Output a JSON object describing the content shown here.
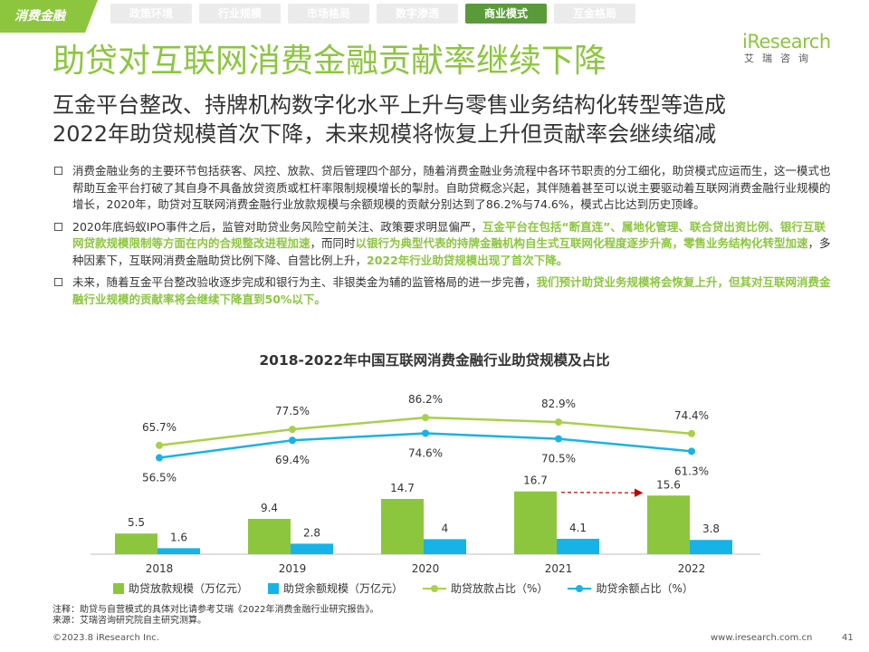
{
  "badge": {
    "label": "消费金融"
  },
  "tabs": [
    {
      "label": "政策环境",
      "active": false
    },
    {
      "label": "行业规模",
      "active": false
    },
    {
      "label": "市场格局",
      "active": false
    },
    {
      "label": "数字渗透",
      "active": false
    },
    {
      "label": "商业模式",
      "active": true
    },
    {
      "label": "互金格局",
      "active": false
    }
  ],
  "logo": {
    "mark": "iResearch",
    "sub": "艾瑞咨询"
  },
  "title": "助贷对互联网消费金融贡献率继续下降",
  "subtitle": {
    "line1": "互金平台整改、持牌机构数字化水平上升与零售业务结构化转型等造成",
    "line2": "2022年助贷规模首次下降，未来规模将恢复上升但贡献率会继续缩减"
  },
  "bullets": {
    "b1": "消费金融业务的主要环节包括获客、风控、放款、贷后管理四个部分，随着消费金融业务流程中各环节职责的分工细化，助贷模式应运而生，这一模式也帮助互金平台打破了其自身不具备放贷资质或杠杆率限制规模增长的掣肘。自助贷概念兴起，其伴随着甚至可以说主要驱动着互联网消费金融行业规模的增长，2020年，助贷对互联网消费金融行业放款规模与余额规模的贡献分别达到了86.2%与74.6%，模式占比达到历史顶峰。",
    "b2_p1": "2020年底蚂蚁IPO事件之后，监管对助贷业务风险空前关注、政策要求明显偏严，",
    "b2_h1": "互金平台在包括“断直连”、属地化管理、联合贷出资比例、银行互联网贷款规模限制等方面在内的合规整改进程加速",
    "b2_p2": "，而同时",
    "b2_h2": "以银行为典型代表的持牌金融机构自生式互联网化程度逐步升高，零售业务结构化转型加速",
    "b2_p3": "，多种因素下，互联网消费金融助贷比例下降、自营比例上升，",
    "b2_h3": "2022年行业助贷规模出现了首次下降。",
    "b3_p1": "未来，随着互金平台整改验收逐步完成和银行为主、非银类金为辅的监管格局的进一步完善，",
    "b3_h1": "我们预计助贷业务规模将会恢复上升，但其对互联网消费金融行业规模的贡献率将会继续下降直到50%以下。"
  },
  "chart_data": {
    "type": "bar+line",
    "title": "2018-2022年中国互联网消费金融行业助贷规模及占比",
    "categories": [
      "2018",
      "2019",
      "2020",
      "2021",
      "2022"
    ],
    "bar_series": [
      {
        "name": "助贷放款规模（万亿元）",
        "values": [
          5.5,
          9.4,
          14.7,
          16.7,
          15.6
        ],
        "color": "#8cc63f"
      },
      {
        "name": "助贷余额规模（万亿元）",
        "values": [
          1.6,
          2.8,
          4.0,
          4.1,
          3.8
        ],
        "color": "#17b3e6"
      }
    ],
    "line_series": [
      {
        "name": "助贷放款占比（%）",
        "values": [
          65.7,
          77.5,
          86.2,
          82.9,
          74.4
        ],
        "labels": [
          "65.7%",
          "77.5%",
          "86.2%",
          "82.9%",
          "74.4%"
        ],
        "color": "#a9d04a"
      },
      {
        "name": "助贷余额占比（%）",
        "values": [
          56.5,
          69.4,
          74.6,
          70.5,
          61.3
        ],
        "labels": [
          "56.5%",
          "69.4%",
          "74.6%",
          "70.5%",
          "61.3%"
        ],
        "color": "#17b3e6"
      }
    ],
    "bar_ylim": [
      0,
      20
    ],
    "line_ylim": [
      0,
      100
    ],
    "annotation": {
      "type": "dashed-arrow",
      "from": "2021",
      "to": "2022",
      "color": "#c00000"
    }
  },
  "note": "注释：助贷与自营模式的具体对比请参考艾瑞《2022年消费金融行业研究报告》。",
  "source": "来源：艾瑞咨询研究院自主研究测算。",
  "footer": {
    "copyright": "©2023.8 iResearch Inc.",
    "website": "www.iresearch.com.cn",
    "page": "41"
  }
}
